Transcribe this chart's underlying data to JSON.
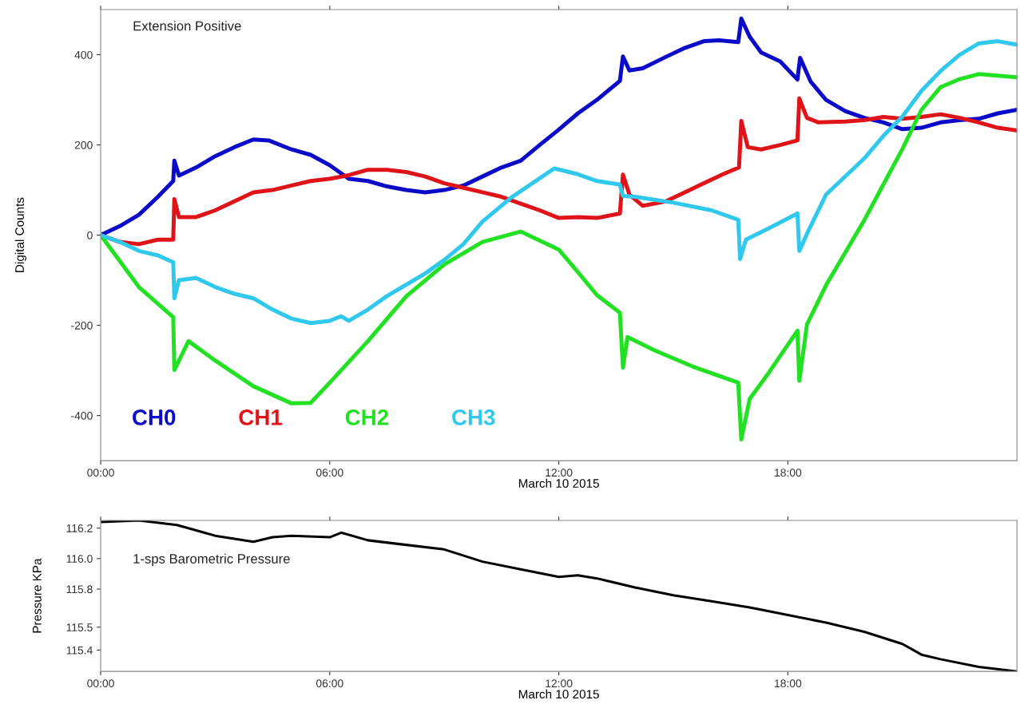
{
  "chart_data": [
    {
      "type": "line",
      "title": "Extension Positive",
      "xlabel": "March 10 2015",
      "ylabel": "Digital Counts",
      "xlim": [
        0,
        24
      ],
      "xticks": [
        {
          "value": 0,
          "label": "00:00"
        },
        {
          "value": 6,
          "label": "06:00"
        },
        {
          "value": 12,
          "label": "12:00"
        },
        {
          "value": 18,
          "label": "18:00"
        }
      ],
      "ylim": [
        -500,
        500
      ],
      "yticks": [
        -400,
        -200,
        0,
        200,
        400
      ],
      "grid": false,
      "legend": "bottom left",
      "marker": "none",
      "line_style": "solid",
      "series": [
        {
          "name": "CH0",
          "color": "#0a0ac8",
          "x": [
            0,
            0.5,
            1,
            1.5,
            1.9,
            1.93,
            2.05,
            2.5,
            3,
            3.5,
            4,
            4.4,
            5,
            5.5,
            6,
            6.5,
            7,
            7.5,
            8,
            8.5,
            9,
            9.5,
            10,
            10.5,
            11,
            11.5,
            12,
            12.5,
            13,
            13.6,
            13.68,
            13.85,
            14.2,
            14.8,
            15.3,
            15.8,
            16.2,
            16.7,
            16.78,
            17,
            17.3,
            17.8,
            18.25,
            18.32,
            18.6,
            19,
            19.5,
            20,
            20.5,
            21,
            21.5,
            22,
            22.5,
            23,
            23.5,
            24
          ],
          "values": [
            0,
            20,
            45,
            85,
            120,
            165,
            132,
            150,
            175,
            195,
            212,
            210,
            190,
            178,
            155,
            125,
            120,
            108,
            100,
            95,
            100,
            110,
            130,
            150,
            165,
            200,
            234,
            270,
            300,
            342,
            396,
            365,
            370,
            395,
            415,
            430,
            432,
            428,
            480,
            440,
            405,
            385,
            345,
            393,
            340,
            300,
            275,
            260,
            250,
            235,
            238,
            250,
            255,
            258,
            270,
            278
          ]
        },
        {
          "name": "CH1",
          "color": "#e01418",
          "x": [
            0,
            0.5,
            1,
            1.5,
            1.9,
            1.93,
            2.05,
            2.5,
            3,
            3.5,
            4,
            4.5,
            5,
            5.5,
            6,
            6.5,
            7,
            7.5,
            8,
            8.5,
            9,
            9.5,
            10,
            10.5,
            11,
            11.5,
            12,
            12.5,
            13,
            13.6,
            13.68,
            13.85,
            14.2,
            14.8,
            15.3,
            15.8,
            16.3,
            16.72,
            16.78,
            16.95,
            17.3,
            17.8,
            18.25,
            18.3,
            18.5,
            18.8,
            19.5,
            20,
            20.5,
            21,
            21.5,
            22,
            22.5,
            23,
            23.5,
            24
          ],
          "values": [
            0,
            -15,
            -20,
            -10,
            -10,
            80,
            40,
            40,
            55,
            75,
            95,
            100,
            110,
            120,
            125,
            133,
            145,
            145,
            140,
            130,
            115,
            105,
            95,
            85,
            70,
            55,
            38,
            40,
            38,
            48,
            134,
            90,
            65,
            75,
            95,
            115,
            135,
            150,
            253,
            195,
            190,
            200,
            210,
            303,
            260,
            250,
            252,
            255,
            262,
            258,
            262,
            268,
            260,
            250,
            238,
            232
          ]
        },
        {
          "name": "CH2",
          "color": "#22e022",
          "x": [
            0,
            1,
            1.9,
            1.93,
            2.3,
            3,
            4,
            5,
            5.5,
            6,
            7,
            8,
            9,
            10,
            11,
            12,
            12.5,
            13,
            13.6,
            13.68,
            13.8,
            14.5,
            15.5,
            16.7,
            16.78,
            17,
            17.5,
            18.25,
            18.3,
            18.5,
            19,
            20,
            20.5,
            21,
            21.5,
            22,
            22.5,
            23,
            24
          ],
          "values": [
            0,
            -115,
            -182,
            -299,
            -235,
            -278,
            -335,
            -373,
            -372,
            -327,
            -235,
            -136,
            -65,
            -15,
            8,
            -32,
            -82,
            -133,
            -172,
            -294,
            -226,
            -255,
            -291,
            -327,
            -453,
            -363,
            -305,
            -212,
            -323,
            -198,
            -111,
            33,
            112,
            191,
            278,
            328,
            346,
            357,
            350
          ]
        },
        {
          "name": "CH3",
          "color": "#30c8ec",
          "x": [
            0,
            0.5,
            1,
            1.5,
            1.9,
            1.93,
            2.05,
            2.5,
            3,
            3.5,
            4,
            4.5,
            5,
            5.5,
            6,
            6.3,
            6.5,
            7,
            7.5,
            8,
            8.5,
            9,
            9.5,
            10,
            10.75,
            11.88,
            12.5,
            13,
            13.6,
            13.68,
            14,
            15,
            16,
            16.7,
            16.75,
            16.9,
            17.5,
            18.25,
            18.3,
            18.5,
            19,
            20,
            20.5,
            21,
            21.5,
            22,
            22.5,
            23,
            23.5,
            24
          ],
          "values": [
            0,
            -15,
            -35,
            -45,
            -60,
            -140,
            -100,
            -95,
            -115,
            -130,
            -140,
            -165,
            -185,
            -195,
            -190,
            -180,
            -190,
            -165,
            -135,
            -110,
            -85,
            -55,
            -20,
            30,
            83,
            148,
            135,
            120,
            112,
            87,
            85,
            72,
            55,
            34,
            -53,
            -10,
            15,
            48,
            -35,
            3,
            90,
            170,
            220,
            263,
            320,
            364,
            400,
            425,
            430,
            422
          ]
        }
      ]
    },
    {
      "type": "line",
      "title": "1-sps Barometric Pressure",
      "xlabel": "March 10 2015",
      "ylabel": "Pressure KPa",
      "xlim": [
        0,
        24
      ],
      "xticks": [
        {
          "value": 0,
          "label": "00:00"
        },
        {
          "value": 6,
          "label": "06:00"
        },
        {
          "value": 12,
          "label": "12:00"
        },
        {
          "value": 18,
          "label": "18:00"
        }
      ],
      "ylim": [
        115.26,
        116.25
      ],
      "yticks": [
        115.4,
        {
          "value": 115.55,
          "label": "115.5"
        },
        115.8,
        {
          "value": 116.0,
          "label": "116.0"
        },
        116.2
      ],
      "grid": false,
      "marker": "none",
      "line_style": "solid",
      "series": [
        {
          "color": "#000000",
          "x": [
            0,
            1,
            2,
            3,
            4,
            4.5,
            5,
            6,
            6.3,
            7,
            8,
            9,
            10,
            11,
            12,
            12.5,
            13,
            14,
            15,
            16,
            17,
            18,
            19,
            20,
            21,
            21.5,
            22,
            23,
            24
          ],
          "values": [
            116.24,
            116.25,
            116.22,
            116.15,
            116.11,
            116.14,
            116.15,
            116.14,
            116.17,
            116.12,
            116.09,
            116.06,
            115.98,
            115.93,
            115.88,
            115.89,
            115.87,
            115.81,
            115.76,
            115.72,
            115.68,
            115.63,
            115.58,
            115.52,
            115.44,
            115.37,
            115.34,
            115.29,
            115.26
          ]
        }
      ]
    }
  ]
}
